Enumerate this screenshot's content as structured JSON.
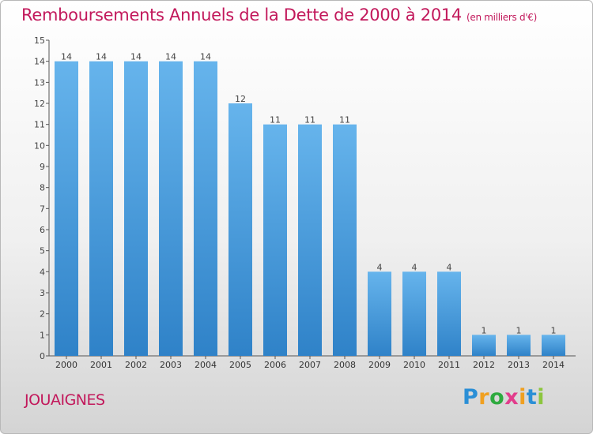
{
  "title": "Remboursements Annuels de la Dette de 2000 à 2014",
  "title_unit": "(en milliers d'€)",
  "commune": "JOUAIGNES",
  "logo": {
    "letters": [
      "P",
      "r",
      "o",
      "x",
      "i",
      "t",
      "i"
    ],
    "colors": [
      "#2b8fd6",
      "#f0a020",
      "#2eaa3f",
      "#e23c8c",
      "#f0a020",
      "#2b8fd6",
      "#8cc63e"
    ]
  },
  "colors": {
    "bar": "#4aa0e0",
    "bar_light": "#66b4ec",
    "bar_dark": "#2f82c8",
    "title": "#c2185b"
  },
  "chart_data": {
    "type": "bar",
    "categories": [
      "2000",
      "2001",
      "2002",
      "2003",
      "2004",
      "2005",
      "2006",
      "2007",
      "2008",
      "2009",
      "2010",
      "2011",
      "2012",
      "2013",
      "2014"
    ],
    "values": [
      14,
      14,
      14,
      14,
      14,
      12,
      11,
      11,
      11,
      4,
      4,
      4,
      1,
      1,
      1
    ],
    "data_labels": [
      "14",
      "14",
      "14",
      "14",
      "14",
      "12",
      "11",
      "11",
      "11",
      "4",
      "4",
      "4",
      "1",
      "1",
      "1"
    ],
    "y_ticks": [
      "0",
      "1",
      "2",
      "3",
      "4",
      "5",
      "6",
      "7",
      "8",
      "9",
      "10",
      "11",
      "12",
      "13",
      "14",
      "15"
    ],
    "ylim": [
      0,
      15
    ],
    "grid": false
  }
}
